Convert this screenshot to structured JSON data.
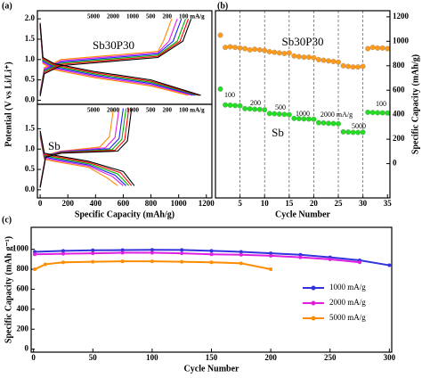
{
  "chart_data": [
    {
      "type": "curves",
      "panel_label": "(a)",
      "y_label": "Potential (V vs Li/Li⁺)",
      "label": "Sb30P30",
      "xlim": [
        -20,
        1240
      ],
      "ylim": [
        -0.1,
        2.2
      ],
      "yticks": [
        {
          "value": 0,
          "label": "0.0"
        },
        {
          "value": 0.5,
          "label": "0.5"
        },
        {
          "value": 1,
          "label": "1.0"
        },
        {
          "value": 1.5,
          "label": "1.5"
        },
        {
          "value": 2,
          "label": "2.0"
        }
      ],
      "series": [
        {
          "name": "5000",
          "color": "#ff8c00",
          "discharge_x": [
            0,
            20,
            100,
            400,
            800,
            1070
          ],
          "discharge": [
            1.8,
            0.9,
            0.75,
            0.55,
            0.35,
            0.12
          ],
          "charge_x": [
            0,
            30,
            150,
            500,
            850,
            890,
            950
          ],
          "charge": [
            0.2,
            0.8,
            1.0,
            1.1,
            1.2,
            1.45,
            2.0
          ]
        },
        {
          "name": "2000",
          "color": "#e020e0",
          "discharge_x": [
            0,
            20,
            100,
            400,
            800,
            1100
          ],
          "discharge": [
            1.82,
            0.93,
            0.78,
            0.58,
            0.38,
            0.12
          ],
          "charge_x": [
            0,
            30,
            150,
            500,
            850,
            930,
            990
          ],
          "charge": [
            0.18,
            0.77,
            0.97,
            1.07,
            1.17,
            1.45,
            2.0
          ]
        },
        {
          "name": "1000",
          "color": "#2020ff",
          "discharge_x": [
            0,
            20,
            100,
            400,
            800,
            1120
          ],
          "discharge": [
            1.84,
            0.96,
            0.81,
            0.61,
            0.41,
            0.12
          ],
          "charge_x": [
            0,
            30,
            150,
            500,
            850,
            960,
            1020
          ],
          "charge": [
            0.16,
            0.74,
            0.94,
            1.04,
            1.14,
            1.45,
            2.0
          ]
        },
        {
          "name": "500",
          "color": "#00b000",
          "discharge_x": [
            0,
            20,
            100,
            400,
            800,
            1140
          ],
          "discharge": [
            1.86,
            0.99,
            0.84,
            0.64,
            0.44,
            0.12
          ],
          "charge_x": [
            0,
            30,
            150,
            500,
            850,
            990,
            1050
          ],
          "charge": [
            0.14,
            0.71,
            0.91,
            1.01,
            1.11,
            1.45,
            2.0
          ]
        },
        {
          "name": "200",
          "color": "#ff0000",
          "discharge_x": [
            0,
            20,
            100,
            400,
            800,
            1150
          ],
          "discharge": [
            1.88,
            1.02,
            0.87,
            0.67,
            0.47,
            0.12
          ],
          "charge_x": [
            0,
            30,
            150,
            500,
            850,
            1010,
            1070
          ],
          "charge": [
            0.12,
            0.68,
            0.88,
            0.98,
            1.08,
            1.45,
            2.0
          ]
        },
        {
          "name": "100 mA/g",
          "color": "#000000",
          "discharge_x": [
            0,
            20,
            100,
            400,
            800,
            1160
          ],
          "discharge": [
            1.9,
            1.05,
            0.9,
            0.7,
            0.5,
            0.12
          ],
          "charge_x": [
            0,
            30,
            150,
            500,
            850,
            1030,
            1090
          ],
          "charge": [
            0.1,
            0.65,
            0.85,
            0.95,
            1.05,
            1.45,
            2.0
          ]
        }
      ]
    },
    {
      "type": "curves",
      "label": "Sb",
      "x_label": "Specific Capacity (mAh/g)",
      "xlim": [
        -20,
        1240
      ],
      "ylim": [
        -0.2,
        2.1
      ],
      "xticks": [
        0,
        200,
        400,
        600,
        800,
        1000,
        1200
      ],
      "yticks": [
        {
          "value": 0,
          "label": "0.0"
        },
        {
          "value": 0.5,
          "label": "0.5"
        },
        {
          "value": 1,
          "label": "1.0"
        },
        {
          "value": 1.5,
          "label": "1.5"
        }
      ],
      "series": [
        {
          "name": "5000",
          "color": "#ff8c00",
          "discharge_x": [
            0,
            30,
            100,
            350,
            480,
            560
          ],
          "discharge": [
            1.3,
            0.75,
            0.7,
            0.55,
            0.3,
            0.1
          ],
          "charge_x": [
            0,
            40,
            150,
            430,
            500,
            530
          ],
          "charge": [
            0.1,
            0.85,
            0.95,
            1.05,
            1.3,
            2.0
          ]
        },
        {
          "name": "2000",
          "color": "#e020e0",
          "discharge_x": [
            0,
            30,
            100,
            350,
            520,
            600
          ],
          "discharge": [
            1.33,
            0.78,
            0.73,
            0.58,
            0.33,
            0.1
          ],
          "charge_x": [
            0,
            40,
            150,
            470,
            540,
            570
          ],
          "charge": [
            0.09,
            0.84,
            0.94,
            1.03,
            1.28,
            2.0
          ]
        },
        {
          "name": "1000",
          "color": "#2020ff",
          "discharge_x": [
            0,
            30,
            100,
            350,
            540,
            620
          ],
          "discharge": [
            1.36,
            0.81,
            0.76,
            0.61,
            0.36,
            0.1
          ],
          "charge_x": [
            0,
            40,
            150,
            500,
            570,
            600
          ],
          "charge": [
            0.08,
            0.83,
            0.93,
            1.01,
            1.26,
            2.0
          ]
        },
        {
          "name": "500",
          "color": "#00b000",
          "discharge_x": [
            0,
            30,
            100,
            350,
            560,
            640
          ],
          "discharge": [
            1.39,
            0.84,
            0.79,
            0.64,
            0.39,
            0.1
          ],
          "charge_x": [
            0,
            40,
            150,
            520,
            590,
            620
          ],
          "charge": [
            0.07,
            0.82,
            0.92,
            0.99,
            1.24,
            2.0
          ]
        },
        {
          "name": "200",
          "color": "#ff0000",
          "discharge_x": [
            0,
            30,
            100,
            350,
            580,
            660
          ],
          "discharge": [
            1.42,
            0.87,
            0.82,
            0.67,
            0.42,
            0.1
          ],
          "charge_x": [
            0,
            40,
            150,
            540,
            610,
            640
          ],
          "charge": [
            0.06,
            0.81,
            0.91,
            0.97,
            1.22,
            2.0
          ]
        },
        {
          "name": "100 mA/g",
          "color": "#000000",
          "discharge_x": [
            0,
            30,
            100,
            350,
            600,
            680
          ],
          "discharge": [
            1.45,
            0.9,
            0.85,
            0.7,
            0.45,
            0.1
          ],
          "charge_x": [
            0,
            40,
            150,
            560,
            630,
            660
          ],
          "charge": [
            0.05,
            0.8,
            0.9,
            0.95,
            1.2,
            2.0
          ]
        }
      ]
    },
    {
      "type": "scatter",
      "panel_label": "(b)",
      "x_label": "Cycle Number",
      "y2_label": "Specific Capacity (mAh/g)",
      "labels": [
        "Sb30P30",
        "Sb"
      ],
      "rate_labels": [
        "100",
        "200",
        "500",
        "1000",
        "2000 mA/g",
        "5000",
        "100"
      ],
      "xgrid": true,
      "xlim": [
        0,
        35.5
      ],
      "xticks": [
        5,
        10,
        15,
        20,
        25,
        30,
        35
      ],
      "y2lim": [
        -280,
        1250
      ],
      "y2ticks": [
        0,
        200,
        400,
        600,
        800,
        1000,
        1200
      ],
      "x": [
        1,
        2,
        3,
        4,
        5,
        6,
        7,
        8,
        9,
        10,
        11,
        12,
        13,
        14,
        15,
        16,
        17,
        18,
        19,
        20,
        21,
        22,
        23,
        24,
        25,
        26,
        27,
        28,
        29,
        30,
        31,
        32,
        33,
        34,
        35
      ],
      "series": [
        {
          "name": "Sb30P30",
          "color": "#ff9a1a",
          "axis": "y2",
          "values": [
            1050,
            950,
            955,
            950,
            945,
            940,
            930,
            935,
            930,
            925,
            915,
            910,
            905,
            900,
            905,
            880,
            875,
            870,
            870,
            865,
            850,
            845,
            840,
            835,
            830,
            800,
            795,
            790,
            790,
            795,
            940,
            950,
            945,
            945,
            940
          ]
        },
        {
          "name": "Sb",
          "color": "#22dd22",
          "axis": "y2",
          "values": [
            610,
            480,
            478,
            475,
            473,
            450,
            448,
            445,
            443,
            440,
            410,
            408,
            405,
            403,
            400,
            370,
            368,
            366,
            365,
            363,
            335,
            333,
            330,
            328,
            326,
            260,
            258,
            256,
            255,
            257,
            420,
            418,
            416,
            415,
            414
          ]
        }
      ]
    },
    {
      "type": "line",
      "panel_label": "(c)",
      "x_label": "Cycle Number",
      "y_label": "Specific Capacity (mAh g⁻¹)",
      "legend": "lower right",
      "xlim": [
        -2,
        302
      ],
      "xticks": [
        0,
        50,
        100,
        150,
        200,
        250,
        300
      ],
      "ylim": [
        -30,
        1220
      ],
      "yticks": [
        0,
        200,
        400,
        600,
        800,
        1000
      ],
      "series": [
        {
          "name": "1000 mA/g",
          "color": "#3333dd",
          "x": [
            1,
            25,
            50,
            75,
            100,
            125,
            150,
            175,
            200,
            225,
            250,
            275,
            300
          ],
          "values": [
            975,
            985,
            990,
            992,
            995,
            993,
            985,
            975,
            960,
            945,
            920,
            890,
            840
          ]
        },
        {
          "name": "2000 mA/g",
          "color": "#e020e0",
          "x": [
            1,
            25,
            50,
            75,
            100,
            125,
            150,
            175,
            200,
            225,
            250,
            275
          ],
          "values": [
            950,
            955,
            960,
            965,
            965,
            960,
            950,
            945,
            935,
            920,
            900,
            870
          ]
        },
        {
          "name": "5000 mA/g",
          "color": "#ff8c00",
          "x": [
            1,
            10,
            25,
            50,
            75,
            100,
            125,
            150,
            175,
            200
          ],
          "values": [
            800,
            850,
            870,
            875,
            880,
            880,
            875,
            870,
            860,
            800
          ]
        }
      ]
    }
  ]
}
